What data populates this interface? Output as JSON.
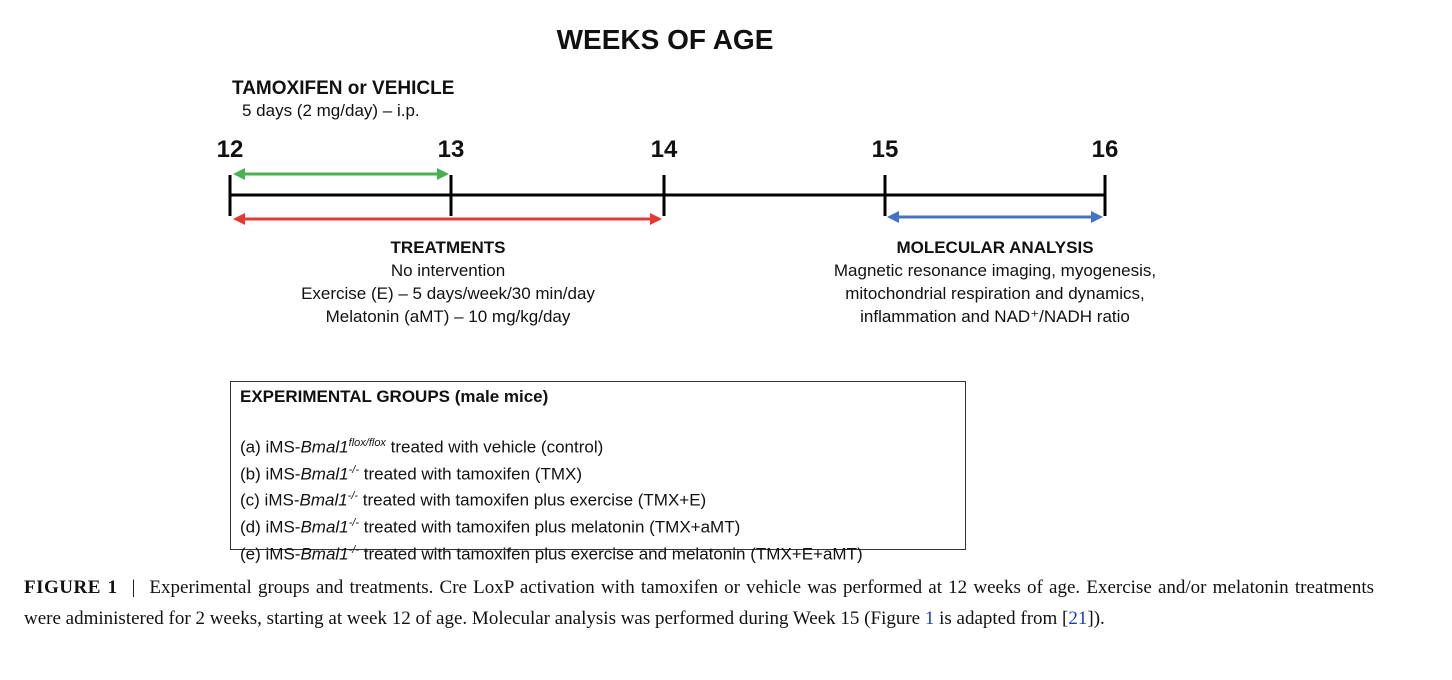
{
  "diagram": {
    "title": "WEEKS OF AGE",
    "tamoxifen": {
      "heading": "TAMOXIFEN or VEHICLE",
      "dose": "5 days (2 mg/day) – i.p."
    },
    "weeks": [
      "12",
      "13",
      "14",
      "15",
      "16"
    ],
    "treatments": {
      "heading": "TREATMENTS",
      "lines": [
        "No intervention",
        "Exercise (E) – 5 days/week/30 min/day",
        "Melatonin (aMT) – 10 mg/kg/day"
      ]
    },
    "analysis": {
      "heading": "MOLECULAR ANALYSIS",
      "lines": [
        "Magnetic resonance imaging, myogenesis,",
        "mitochondrial respiration and dynamics,",
        "inflammation and NAD⁺/NADH ratio"
      ]
    },
    "colors": {
      "tamoxifen_arrow": "#4caf50",
      "treatment_arrow": "#e53935",
      "analysis_arrow": "#4472c4",
      "timeline": "#000000"
    }
  },
  "groups": {
    "heading": "EXPERIMENTAL GROUPS (male mice)",
    "gene": "Bmal1",
    "items": [
      {
        "prefix": "(a) iMS-",
        "sup": "flox/flox",
        "rest": " treated with vehicle (control)"
      },
      {
        "prefix": "(b) iMS-",
        "sup": "-/-",
        "rest": " treated with tamoxifen (TMX)"
      },
      {
        "prefix": "(c) iMS-",
        "sup": "-/-",
        "rest": " treated with tamoxifen plus exercise (TMX+E)"
      },
      {
        "prefix": "(d) iMS-",
        "sup": "-/-",
        "rest": " treated with tamoxifen plus melatonin (TMX+aMT)"
      },
      {
        "prefix": "(e) iMS-",
        "sup": "-/-",
        "rest": " treated with tamoxifen plus exercise and melatonin (TMX+E+aMT)"
      }
    ]
  },
  "caption": {
    "label": "FIGURE 1",
    "separator": "|",
    "text": "Experimental groups and treatments. Cre LoxP activation with tamoxifen or vehicle was performed at 12 weeks of age. Exercise and/or melatonin treatments were administered for 2 weeks, starting at week 12 of age. Molecular analysis was performed during Week 15 (Figure ",
    "fig_link": "1",
    "mid": " is adapted from [",
    "ref_link": "21",
    "end": "])."
  }
}
